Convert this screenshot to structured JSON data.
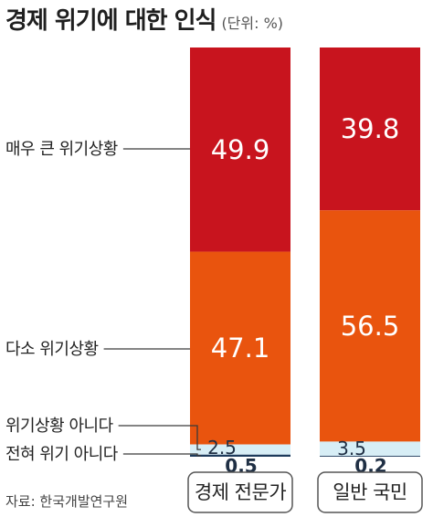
{
  "header": {
    "title": "경제 위기에 대한 인식",
    "unit": "(단위: %)"
  },
  "source": "자료: 한국개발연구원",
  "colors": {
    "매우 큰 위기상황": "#c8141e",
    "다소 위기상황": "#e9540e",
    "위기상황 아니다": "#d7eef6",
    "전혀 위기 아니다": "#1d3b5c",
    "leader_line": "#3a3a3a"
  },
  "chart_data": {
    "type": "bar",
    "stacked": true,
    "title": "경제 위기에 대한 인식",
    "unit": "%",
    "categories": [
      "경제 전문가",
      "일반 국민"
    ],
    "series": [
      {
        "name": "매우 큰 위기상황",
        "values": [
          49.9,
          39.8
        ],
        "labels": [
          "49.9",
          "39.8"
        ]
      },
      {
        "name": "다소 위기상황",
        "values": [
          47.1,
          56.5
        ],
        "labels": [
          "47.1",
          "56.5"
        ]
      },
      {
        "name": "위기상황 아니다",
        "values": [
          2.5,
          3.5
        ],
        "labels": [
          "2.5",
          "3.5"
        ]
      },
      {
        "name": "전혀 위기 아니다",
        "values": [
          0.5,
          0.2
        ],
        "labels": [
          "0.5",
          "0.2"
        ]
      }
    ],
    "ylim": [
      0,
      100
    ],
    "legend": "left, with leader lines"
  }
}
